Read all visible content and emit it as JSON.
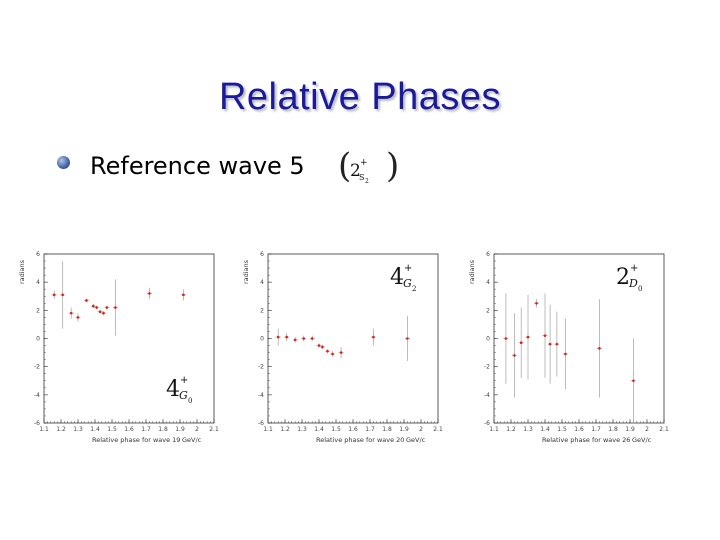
{
  "slide": {
    "title": "Relative Phases",
    "bullet_text": "Reference wave 5",
    "ref_wave": {
      "L": "2",
      "sup": "+",
      "sub": "S",
      "subsub": "2"
    }
  },
  "colors": {
    "title": "#1a1a9c",
    "points": "#e0201a",
    "errors": "#a0a0a0",
    "axes": "#333333"
  },
  "chart_data": [
    {
      "type": "scatter",
      "title": "",
      "xlabel": "Relative phase for wave 19",
      "xunit": "GeV/c",
      "ylabel": "radians",
      "xlim": [
        1.1,
        2.1
      ],
      "ylim": [
        -6,
        6
      ],
      "xticks": [
        "1.1",
        "1.2",
        "1.3",
        "1.4",
        "1.5",
        "1.6",
        "1.7",
        "1.8",
        "1.9",
        "2",
        "2.1"
      ],
      "yticks": [
        "-6",
        "-4",
        "-2",
        "0",
        "2",
        "4",
        "6"
      ],
      "wave_label": {
        "L": "4",
        "sup": "+",
        "sub": "G",
        "subsub": "0"
      },
      "label_pos": "bottom-right",
      "points": [
        {
          "x": 1.16,
          "y": 3.1,
          "err": 0.3
        },
        {
          "x": 1.21,
          "y": 3.1,
          "err": 2.4
        },
        {
          "x": 1.26,
          "y": 1.8,
          "err": 0.4
        },
        {
          "x": 1.3,
          "y": 1.5,
          "err": 0.3
        },
        {
          "x": 1.35,
          "y": 2.7,
          "err": 0.15
        },
        {
          "x": 1.39,
          "y": 2.3,
          "err": 0.15
        },
        {
          "x": 1.41,
          "y": 2.2,
          "err": 0.15
        },
        {
          "x": 1.43,
          "y": 1.9,
          "err": 0.15
        },
        {
          "x": 1.45,
          "y": 1.8,
          "err": 0.15
        },
        {
          "x": 1.47,
          "y": 2.2,
          "err": 0.15
        },
        {
          "x": 1.52,
          "y": 2.2,
          "err": 2.0
        },
        {
          "x": 1.72,
          "y": 3.2,
          "err": 0.4
        },
        {
          "x": 1.92,
          "y": 3.1,
          "err": 0.4
        }
      ]
    },
    {
      "type": "scatter",
      "title": "",
      "xlabel": "Relative phase for wave 20",
      "xunit": "GeV/c",
      "ylabel": "radians",
      "xlim": [
        1.1,
        2.1
      ],
      "ylim": [
        -6,
        6
      ],
      "xticks": [
        "1.1",
        "1.2",
        "1.3",
        "1.4",
        "1.5",
        "1.6",
        "1.7",
        "1.8",
        "1.9",
        "2",
        "2.1"
      ],
      "yticks": [
        "-6",
        "-4",
        "-2",
        "0",
        "2",
        "4",
        "6"
      ],
      "wave_label": {
        "L": "4",
        "sup": "+",
        "sub": "G",
        "subsub": "2"
      },
      "label_pos": "top-right",
      "points": [
        {
          "x": 1.16,
          "y": 0.1,
          "err": 0.6
        },
        {
          "x": 1.21,
          "y": 0.1,
          "err": 0.3
        },
        {
          "x": 1.26,
          "y": -0.1,
          "err": 0.2
        },
        {
          "x": 1.31,
          "y": 0.0,
          "err": 0.2
        },
        {
          "x": 1.36,
          "y": 0.0,
          "err": 0.2
        },
        {
          "x": 1.4,
          "y": -0.5,
          "err": 0.15
        },
        {
          "x": 1.42,
          "y": -0.6,
          "err": 0.15
        },
        {
          "x": 1.45,
          "y": -0.9,
          "err": 0.15
        },
        {
          "x": 1.48,
          "y": -1.1,
          "err": 0.2
        },
        {
          "x": 1.53,
          "y": -1.0,
          "err": 0.4
        },
        {
          "x": 1.72,
          "y": 0.1,
          "err": 0.6
        },
        {
          "x": 1.92,
          "y": 0.0,
          "err": 1.6
        }
      ]
    },
    {
      "type": "scatter",
      "title": "",
      "xlabel": "Relative phase for wave 26",
      "xunit": "GeV/c",
      "ylabel": "radians",
      "xlim": [
        1.1,
        2.1
      ],
      "ylim": [
        -6,
        6
      ],
      "xticks": [
        "1.1",
        "1.2",
        "1.3",
        "1.4",
        "1.5",
        "1.6",
        "1.7",
        "1.8",
        "1.9",
        "2",
        "2.1"
      ],
      "yticks": [
        "-6",
        "-4",
        "-2",
        "0",
        "2",
        "4",
        "6"
      ],
      "wave_label": {
        "L": "2",
        "sup": "+",
        "sub": "D",
        "subsub": "0"
      },
      "label_pos": "top-right",
      "points": [
        {
          "x": 1.17,
          "y": 0.0,
          "err": 3.2
        },
        {
          "x": 1.22,
          "y": -1.2,
          "err": 3.0
        },
        {
          "x": 1.26,
          "y": -0.3,
          "err": 2.5
        },
        {
          "x": 1.3,
          "y": 0.1,
          "err": 3.0
        },
        {
          "x": 1.35,
          "y": 2.5,
          "err": 0.3
        },
        {
          "x": 1.4,
          "y": 0.2,
          "err": 3.0
        },
        {
          "x": 1.43,
          "y": -0.4,
          "err": 2.8
        },
        {
          "x": 1.47,
          "y": -0.4,
          "err": 2.3
        },
        {
          "x": 1.52,
          "y": -1.1,
          "err": 2.5
        },
        {
          "x": 1.72,
          "y": -0.7,
          "err": 3.5
        },
        {
          "x": 1.92,
          "y": -3.0,
          "err": 3.0
        }
      ]
    }
  ]
}
